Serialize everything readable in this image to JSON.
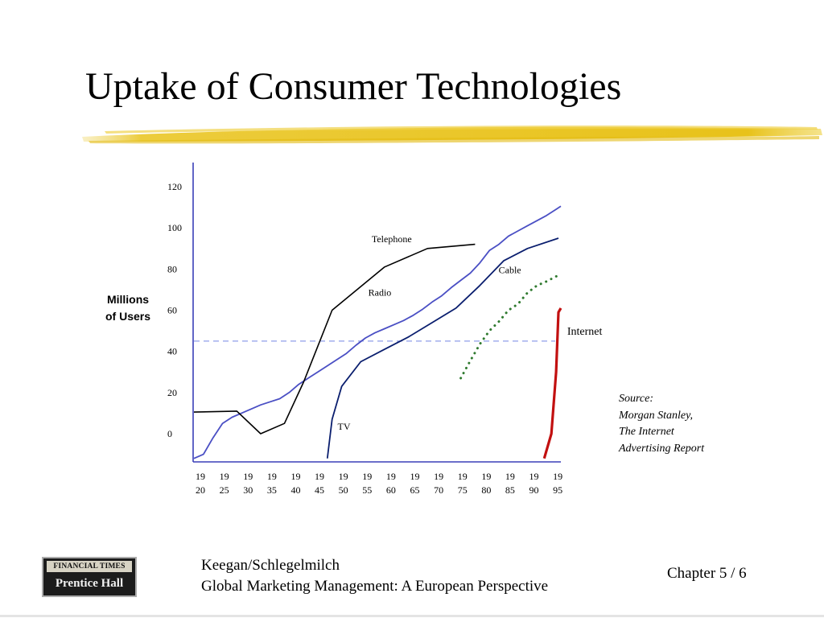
{
  "slide": {
    "title": "Uptake of Consumer Technologies",
    "accent_color": "#e8c21a",
    "source_lines": [
      "Source:",
      "Morgan Stanley,",
      "The Internet",
      "Advertising Report"
    ]
  },
  "footer": {
    "logo_top": "FINANCIAL TIMES",
    "logo_bottom": "Prentice Hall",
    "author": "Keegan/Schlegelmilch",
    "book": "Global Marketing Management: A European Perspective",
    "chapter": "Chapter 5 / 6"
  },
  "chart_data": {
    "type": "line",
    "ylabel": [
      "Millions",
      "of Users"
    ],
    "xlabel": "",
    "ylim": [
      0,
      120
    ],
    "yticks": [
      0,
      20,
      40,
      60,
      80,
      100,
      120
    ],
    "x_range": [
      1920,
      1997
    ],
    "xticks": [
      {
        "x": 1920,
        "top": "19",
        "bottom": "20"
      },
      {
        "x": 1925,
        "top": "19",
        "bottom": "25"
      },
      {
        "x": 1930,
        "top": "19",
        "bottom": "30"
      },
      {
        "x": 1935,
        "top": "19",
        "bottom": "35"
      },
      {
        "x": 1940,
        "top": "19",
        "bottom": "40"
      },
      {
        "x": 1945,
        "top": "19",
        "bottom": "45"
      },
      {
        "x": 1950,
        "top": "19",
        "bottom": "50"
      },
      {
        "x": 1955,
        "top": "19",
        "bottom": "55"
      },
      {
        "x": 1960,
        "top": "19",
        "bottom": "60"
      },
      {
        "x": 1965,
        "top": "19",
        "bottom": "65"
      },
      {
        "x": 1970,
        "top": "19",
        "bottom": "70"
      },
      {
        "x": 1975,
        "top": "19",
        "bottom": "75"
      },
      {
        "x": 1980,
        "top": "19",
        "bottom": "80"
      },
      {
        "x": 1985,
        "top": "19",
        "bottom": "85"
      },
      {
        "x": 1990,
        "top": "19",
        "bottom": "90"
      },
      {
        "x": 1995,
        "top": "19",
        "bottom": "95"
      }
    ],
    "reference_line": {
      "y": 45,
      "color": "#8f9ee8"
    },
    "grid": false,
    "series": [
      {
        "name": "Radio",
        "color": "#4a4fc4",
        "style": "solid",
        "width": 1.8,
        "x": [
          1920,
          1922,
          1924,
          1926,
          1928,
          1930,
          1932,
          1934,
          1936,
          1938,
          1940,
          1942,
          1944,
          1946,
          1948,
          1950,
          1952,
          1954,
          1956,
          1958,
          1960,
          1962,
          1964,
          1966,
          1968,
          1970,
          1972,
          1974,
          1976,
          1978,
          1980,
          1982,
          1984,
          1986,
          1988,
          1990,
          1992,
          1994,
          1996,
          1997
        ],
        "y": [
          -12,
          -10,
          -2,
          5,
          8,
          10,
          12,
          14,
          15.5,
          17,
          20,
          24,
          27,
          30,
          33,
          36,
          39,
          43,
          46.5,
          49,
          51,
          53,
          55,
          57.5,
          60.5,
          64,
          67,
          71,
          74.5,
          78,
          83,
          89,
          92,
          96,
          98.5,
          101,
          103.5,
          106,
          109,
          110.5
        ]
      },
      {
        "name": "Telephone",
        "color": "#000000",
        "style": "solid",
        "width": 1.6,
        "x": [
          1920,
          1929,
          1934,
          1939,
          1943,
          1949,
          1960,
          1969,
          1979
        ],
        "y": [
          10.5,
          11,
          0,
          5,
          25,
          60,
          81,
          90,
          92
        ]
      },
      {
        "name": "TV",
        "color": "#0a1e6e",
        "style": "solid",
        "width": 1.8,
        "x": [
          1948,
          1949,
          1951,
          1955,
          1960,
          1965,
          1970,
          1975,
          1980,
          1985,
          1990,
          1996.5
        ],
        "y": [
          -12,
          7,
          23,
          35,
          41,
          47,
          54,
          61,
          72,
          84,
          90,
          95
        ]
      },
      {
        "name": "Cable",
        "color": "#2f7a2f",
        "style": "dotted",
        "width": 3,
        "x": [
          1976,
          1978,
          1980,
          1982,
          1984,
          1986,
          1988,
          1990,
          1992,
          1994,
          1996.5
        ],
        "y": [
          27,
          35.5,
          43.5,
          50,
          54.5,
          60,
          63,
          68.5,
          72,
          74,
          77
        ]
      },
      {
        "name": "Internet",
        "color": "#c21010",
        "style": "solid",
        "width": 3.2,
        "x": [
          1993.5,
          1995,
          1996,
          1996.5,
          1997
        ],
        "y": [
          -12,
          0,
          30,
          59,
          61
        ]
      }
    ],
    "annotations": [
      {
        "text": "Telephone",
        "x": 1961.5,
        "y": 93
      },
      {
        "text": "Radio",
        "x": 1959,
        "y": 67
      },
      {
        "text": "TV",
        "x": 1951.5,
        "y": 2
      },
      {
        "text": "Cable",
        "x": 1986.3,
        "y": 78
      },
      {
        "text": "Internet",
        "x": 2002,
        "y": 48
      }
    ]
  }
}
